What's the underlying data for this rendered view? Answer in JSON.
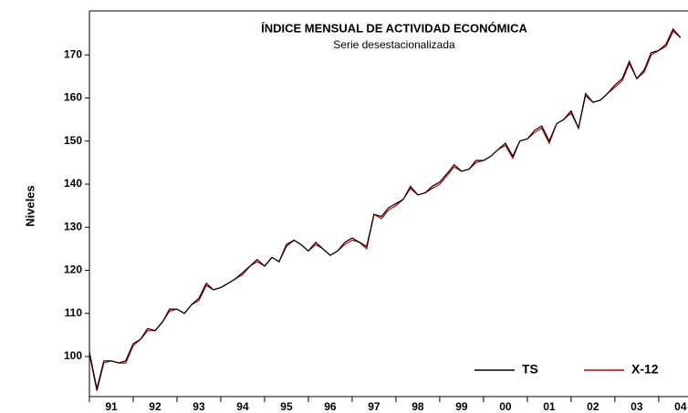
{
  "chart_data": {
    "type": "line",
    "title": "ÍNDICE MENSUAL DE ACTIVIDAD ECONÓMICA",
    "subtitle": "Serie desestacionalizada",
    "y_label": "Niveles",
    "x": [
      91,
      91.17,
      91.33,
      91.5,
      91.67,
      91.83,
      92,
      92.17,
      92.33,
      92.5,
      92.67,
      92.83,
      93,
      93.17,
      93.33,
      93.5,
      93.67,
      93.83,
      94,
      94.17,
      94.33,
      94.5,
      94.67,
      94.83,
      95,
      95.17,
      95.33,
      95.5,
      95.67,
      95.83,
      96,
      96.17,
      96.33,
      96.5,
      96.67,
      96.83,
      97,
      97.17,
      97.33,
      97.5,
      97.67,
      97.83,
      98,
      98.17,
      98.33,
      98.5,
      98.67,
      98.83,
      99,
      99.17,
      99.33,
      99.5,
      99.67,
      99.83,
      100,
      100.17,
      100.33,
      100.5,
      100.67,
      100.83,
      101,
      101.17,
      101.33,
      101.5,
      101.67,
      101.83,
      102,
      102.17,
      102.33,
      102.5,
      102.67,
      102.83,
      103,
      103.17,
      103.33,
      103.5,
      103.67,
      103.83,
      104,
      104.17,
      104.33,
      104.5
    ],
    "series": [
      {
        "name": "TS",
        "color": "#000000",
        "values": [
          101,
          92.5,
          99,
          99,
          98.5,
          99,
          103,
          104,
          106.5,
          106,
          108,
          111,
          111,
          110,
          112,
          113.5,
          117,
          115.5,
          116,
          117,
          118,
          119.5,
          121,
          122.5,
          121,
          123,
          122,
          126,
          127,
          126,
          124.5,
          126.5,
          125,
          123.5,
          124.5,
          126.5,
          127.5,
          126.5,
          125.5,
          133,
          132.5,
          134.5,
          135.5,
          136.5,
          139.5,
          137.5,
          138,
          139.5,
          140.5,
          142.5,
          144.5,
          143,
          143.5,
          145.5,
          145.5,
          146.5,
          148,
          149.5,
          146.5,
          150,
          150.5,
          152.5,
          153.5,
          150,
          154,
          155,
          157,
          153,
          161,
          159,
          159.5,
          161,
          163,
          164.5,
          168.5,
          164.5,
          166.5,
          170.5,
          171,
          172.5,
          176,
          174
        ]
      },
      {
        "name": "X-12",
        "color": "#c00000",
        "values": [
          100.5,
          92,
          98.5,
          99,
          98.5,
          98.5,
          102.5,
          104,
          106,
          106,
          108,
          110.5,
          111,
          110,
          112,
          113,
          116.5,
          115.5,
          116,
          117,
          118,
          119,
          121,
          122,
          121,
          123,
          122,
          125.5,
          127,
          126,
          124.5,
          126,
          125,
          123.5,
          124.5,
          126,
          127,
          126.5,
          125,
          133,
          132,
          134,
          135,
          136.5,
          139,
          137.5,
          138,
          139,
          140,
          142,
          144,
          143,
          143.5,
          145,
          145.5,
          146.5,
          148,
          149,
          146,
          150,
          150.5,
          152,
          153,
          149.5,
          154,
          155,
          156.5,
          153,
          160.5,
          159,
          159.5,
          161,
          162.5,
          164,
          168,
          164.5,
          166,
          170,
          171,
          172,
          175.5,
          174
        ]
      }
    ],
    "ylim": [
      90.7,
      180.2
    ],
    "yticks": [
      100,
      110,
      120,
      130,
      140,
      150,
      160,
      170
    ],
    "xlim": [
      91,
      104.67
    ],
    "xticks": [
      91,
      92,
      93,
      94,
      95,
      96,
      97,
      98,
      99,
      {
        "value": 100,
        "label": "00"
      },
      {
        "value": 101,
        "label": "01"
      },
      {
        "value": 102,
        "label": "02"
      },
      {
        "value": 103,
        "label": "03"
      },
      {
        "value": 104,
        "label": "04"
      }
    ],
    "legend": "lower right"
  }
}
